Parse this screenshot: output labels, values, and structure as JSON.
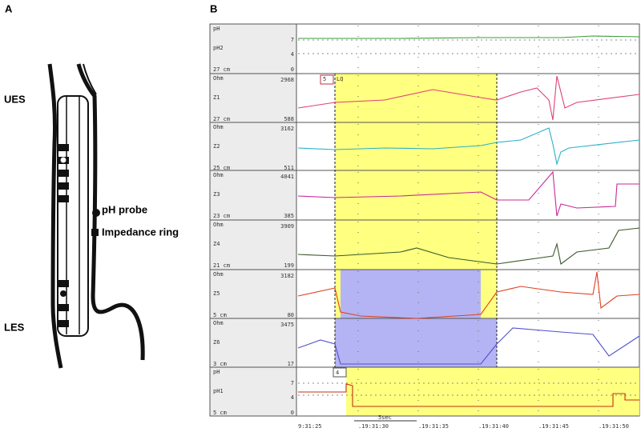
{
  "panel_a": {
    "label": "A",
    "upper": "UES",
    "lower": "LES",
    "legend": [
      "pH probe",
      "Impedance ring"
    ]
  },
  "panel_b": {
    "label": "B",
    "channels": [
      {
        "unit": "pH",
        "name": "pH2",
        "depth": "27 cm",
        "scale": [
          7,
          4,
          0
        ]
      },
      {
        "unit": "Ohm",
        "name": "Z1",
        "depth": "27 cm",
        "scale": [
          2968,
          588
        ]
      },
      {
        "unit": "Ohm",
        "name": "Z2",
        "depth": "25 cm",
        "scale": [
          3162,
          511
        ]
      },
      {
        "unit": "Ohm",
        "name": "Z3",
        "depth": "23 cm",
        "scale": [
          4041,
          385
        ]
      },
      {
        "unit": "Ohm",
        "name": "Z4",
        "depth": "21 cm",
        "scale": [
          3909,
          199
        ]
      },
      {
        "unit": "Ohm",
        "name": "Z5",
        "depth": "5 cm",
        "scale": [
          3182,
          80
        ]
      },
      {
        "unit": "Ohm",
        "name": "Z6",
        "depth": "3 cm",
        "scale": [
          3475,
          17
        ]
      },
      {
        "unit": "pH",
        "name": "pH1",
        "depth": "5 cm",
        "scale": [
          7,
          4,
          0
        ]
      }
    ],
    "markers": [
      "5",
      "LQ",
      "4"
    ],
    "scale": "5sec",
    "times": [
      "9:31:25",
      ".19:31:30",
      ".19:31:35",
      ".19:31:40",
      ".19:31:45",
      ".19:31:50"
    ]
  }
}
